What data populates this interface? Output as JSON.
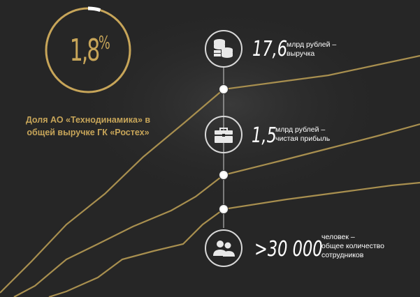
{
  "share": {
    "value": "1,8",
    "unit": "%",
    "fraction": 0.018,
    "label": "Доля АО «Технодинамика» в общей выручке ГК «Ростех»"
  },
  "stats": [
    {
      "value": "17,6",
      "desc": "млрд рублей –\nвыручка",
      "icon": "coins-icon"
    },
    {
      "value": "1,5",
      "desc": "млрд рублей –\nчистая прибыль",
      "icon": "briefcase-icon"
    },
    {
      "value": ">30 000",
      "desc": "человек –\nобщее количество\nсотрудников",
      "icon": "people-icon"
    }
  ],
  "colors": {
    "background": "#262626",
    "accent": "#c7a559",
    "text": "#ffffff",
    "ring_bg": "#3a3a3a"
  }
}
